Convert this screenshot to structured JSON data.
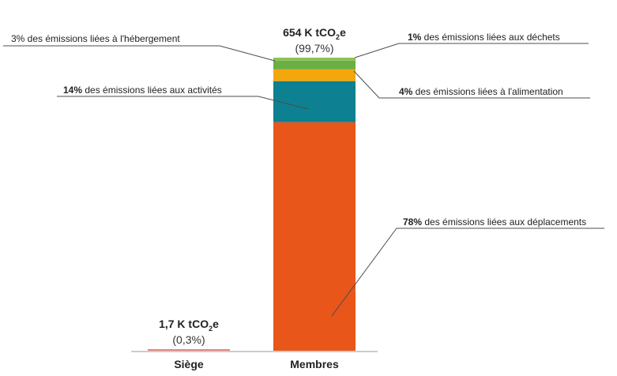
{
  "chart_data": {
    "type": "bar",
    "stacked": true,
    "categories": [
      "Siège",
      "Membres"
    ],
    "series": [
      {
        "key": "deplacements",
        "values": [
          0,
          78
        ],
        "color": "#E8561A"
      },
      {
        "key": "activites",
        "values": [
          0,
          14
        ],
        "color": "#0D8091"
      },
      {
        "key": "alimentation",
        "values": [
          0,
          4
        ],
        "color": "#F4A60D"
      },
      {
        "key": "hebergement",
        "values": [
          0,
          3
        ],
        "color": "#6BAE45"
      },
      {
        "key": "dechets",
        "values": [
          0,
          1
        ],
        "color": "#8CC152"
      },
      {
        "key": "siege",
        "values": [
          0.3,
          0
        ],
        "color": "#E8847A"
      }
    ],
    "totals": [
      {
        "value": "1,7 K tCO",
        "sub": "2",
        "unit": "e",
        "share": "(0,3%)"
      },
      {
        "value": "654 K  tCO",
        "sub": "2",
        "unit": "e",
        "share": "(99,7%)"
      }
    ],
    "annotations": [
      {
        "series": "hebergement",
        "pct": "3%",
        "text": " des émissions liées à l'hébergement",
        "bold_pct": false
      },
      {
        "series": "dechets",
        "pct": "1%",
        "text": " des émissions liées aux déchets",
        "bold_pct": true
      },
      {
        "series": "activites",
        "pct": "14%",
        "text": " des émissions liées aux activités",
        "bold_pct": true
      },
      {
        "series": "alimentation",
        "pct": "4%",
        "text": " des émissions liées à l'alimentation",
        "bold_pct": true
      },
      {
        "series": "deplacements",
        "pct": "78%",
        "text": " des émissions liées aux déplacements",
        "bold_pct": true
      }
    ],
    "ylim": [
      0,
      100
    ],
    "grid": false,
    "legend": "none"
  }
}
